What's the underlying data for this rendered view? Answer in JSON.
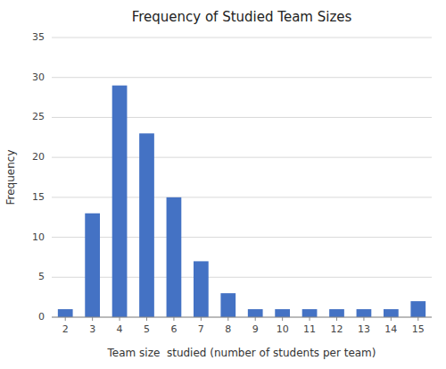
{
  "chart_data": {
    "type": "bar",
    "title": "Frequency of Studied Team Sizes",
    "xlabel": "Team size  studied (number of students per team)",
    "ylabel": "Frequency",
    "categories": [
      2,
      3,
      4,
      5,
      6,
      7,
      8,
      9,
      10,
      11,
      12,
      13,
      14,
      15
    ],
    "values": [
      1,
      13,
      29,
      23,
      15,
      7,
      3,
      1,
      1,
      1,
      1,
      1,
      1,
      2
    ],
    "color": "#4472C4",
    "ylim": [
      0,
      35
    ],
    "yticks": [
      0,
      5,
      10,
      15,
      20,
      25,
      30,
      35
    ],
    "grid": true
  }
}
